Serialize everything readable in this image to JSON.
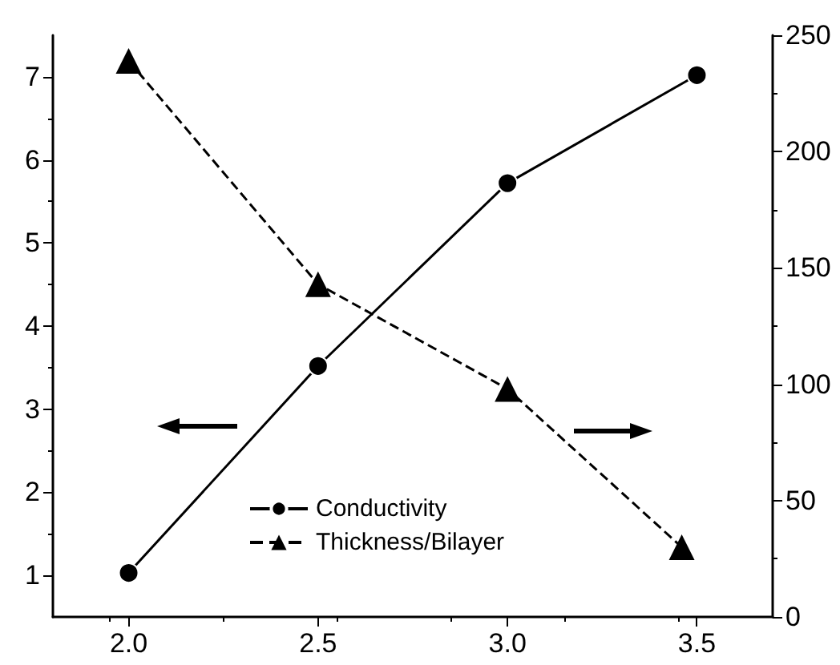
{
  "chart_data": {
    "type": "line",
    "xlim": [
      1.8,
      3.7
    ],
    "xticks": [
      {
        "value": 2,
        "label": "2.0"
      },
      {
        "value": 2.5,
        "label": "2.5"
      },
      {
        "value": 3,
        "label": "3.0"
      },
      {
        "value": 3.5,
        "label": "3.5"
      }
    ],
    "ylim": [
      0.5,
      7.5
    ],
    "yticks": [
      1,
      2,
      3,
      4,
      5,
      6,
      7
    ],
    "y2lim": [
      0,
      250
    ],
    "y2ticks": [
      0,
      50,
      100,
      150,
      200,
      250
    ],
    "grid": false,
    "legend": "bottom",
    "series": [
      {
        "name": "Conductivity",
        "color": "#000000",
        "x": [
          2.0,
          2.5,
          3.0,
          3.5
        ],
        "values": [
          1.03,
          3.52,
          5.72,
          7.02
        ],
        "marker": "circle",
        "line_style": "solid"
      },
      {
        "name": "Thickness/Bilayer",
        "color": "#000000",
        "axis": "y2",
        "x": [
          2.0,
          2.5,
          3.0,
          3.46
        ],
        "values": [
          239,
          143,
          98,
          30
        ],
        "marker": "triangle",
        "line_style": "dashed"
      }
    ]
  }
}
